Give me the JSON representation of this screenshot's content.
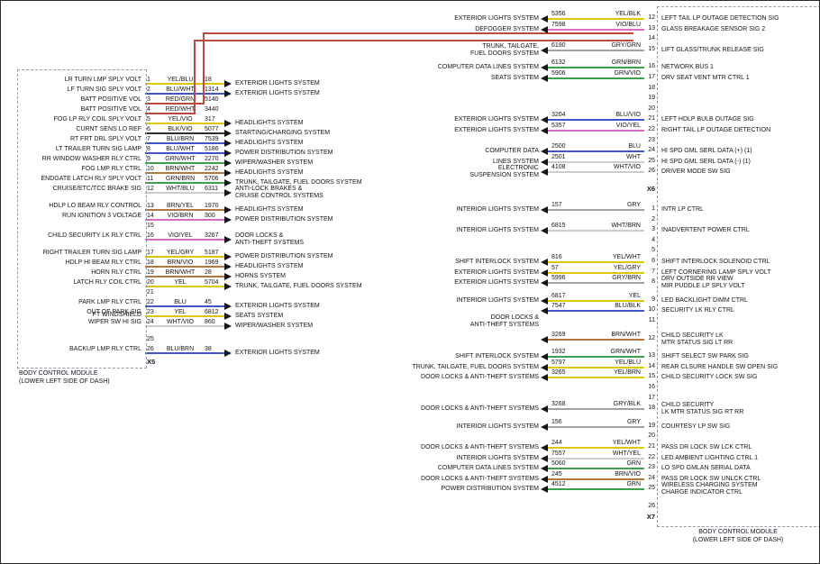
{
  "wire_colors": {
    "YEL": "#ddc702",
    "BLU": "#4056c8",
    "RED": "#b94a3e",
    "GRN": "#3f9f4c",
    "BRN": "#b1793f",
    "BLK": "#2d2d2d",
    "VIO": "#d66cc5",
    "WHT": "#cccccc",
    "GRY": "#a3a3a3"
  },
  "left_module": {
    "name_line1": "BODY CONTROL MODULE",
    "name_line2": "(LOWER LEFT SIDE OF DASH)",
    "connector": "X5",
    "rows": [
      {
        "pin": "1",
        "label": "LR TURN LMP SPLY VOLT",
        "wire": "YEL/BLU",
        "circuit": "18",
        "system": "EXTERIOR LIGHTS SYSTEM"
      },
      {
        "pin": "2",
        "label": "LF TURN SIG SPLY VOLT",
        "wire": "BLU/WHT",
        "circuit": "1314",
        "system": "EXTERIOR LIGHTS SYSTEM"
      },
      {
        "pin": "3",
        "label": "BATT POSITIVE VOL",
        "wire": "RED/GRN",
        "circuit": "5140",
        "route": "up"
      },
      {
        "pin": "4",
        "label": "BATT POSITIVE VOL",
        "wire": "RED/WHT",
        "circuit": "3440",
        "route": "up"
      },
      {
        "pin": "5",
        "label": "FOG LP RLY COIL SPLY VOLT",
        "wire": "YEL/VIO",
        "circuit": "317",
        "system": "HEADLIGHTS SYSTEM"
      },
      {
        "pin": "6",
        "label": "CURNT SENS LO REF",
        "wire": "BLK/VIO",
        "circuit": "5077",
        "system": "STARTING/CHARGING SYSTEM"
      },
      {
        "pin": "7",
        "label": "RT FRT DRL SPLY VOLT",
        "wire": "BLU/BRN",
        "circuit": "7539",
        "system": "HEADLIGHTS SYSTEM"
      },
      {
        "pin": "8",
        "label": "LT TRAILER TURN SIG LAMP",
        "wire": "BLU/WHT",
        "circuit": "5186",
        "system": "POWER DISTRIBUTION SYSTEM"
      },
      {
        "pin": "9",
        "label": "RR WINDOW WASHER RLY CTRL",
        "wire": "GRN/WHT",
        "circuit": "2270",
        "system": "WIPER/WASHER SYSTEM"
      },
      {
        "pin": "10",
        "label": "FOG LMP RLY CTRL",
        "wire": "BRN/WHT",
        "circuit": "2242",
        "system": "HEADLIGHTS SYSTEM"
      },
      {
        "pin": "11",
        "label": "ENDGATE LATCH RLY SPLY VOLT",
        "wire": "GRN/BRN",
        "circuit": "5706",
        "system": "TRUNK, TAILGATE, FUEL DOORS SYSTEM"
      },
      {
        "pin": "12",
        "label": "CRUISE/ETC/TCC BRAKE SIG",
        "wire": "WHT/BLU",
        "circuit": "6311",
        "system": "ANTI-LOCK BRAKES &\nCRUISE CONTROL SYSTEMS"
      },
      {
        "pin": "13",
        "label": "HDLP LO BEAM RLY CONTROL",
        "wire": "BRN/YEL",
        "circuit": "1970",
        "system": "HEADLIGHTS SYSTEM"
      },
      {
        "pin": "14",
        "label": "RUN IGNITION 3 VOLTAGE",
        "wire": "VIO/BRN",
        "circuit": "300",
        "system": "POWER DISTRIBUTION SYSTEM"
      },
      {
        "pin": "15"
      },
      {
        "pin": "16",
        "label": "CHILD SECURITY LK RLY CTRL",
        "wire": "VIO/YEL",
        "circuit": "3267",
        "system": "DOOR LOCKS &\nANTI-THEFT SYSTEMS"
      },
      {
        "pin": "17",
        "label": "RIGHT TRAILER TURN SIG LAMP",
        "wire": "YEL/GRY",
        "circuit": "5187",
        "system": "POWER DISTRIBUTION SYSTEM"
      },
      {
        "pin": "18",
        "label": "HDLP HI BEAM RLY CTRL",
        "wire": "BRN/VIO",
        "circuit": "1969",
        "system": "HEADLIGHTS SYSTEM"
      },
      {
        "pin": "19",
        "label": "HORN RLY CTRL",
        "wire": "BRN/WHT",
        "circuit": "28",
        "system": "HORNS SYSTEM"
      },
      {
        "pin": "20",
        "label": "LATCH RLY COIL CTRL",
        "wire": "YEL",
        "circuit": "5704",
        "system": "TRUNK, TAILGATE, FUEL DOORS SYSTEM"
      },
      {
        "pin": "21"
      },
      {
        "pin": "22",
        "label": "PARK LMP RLY CTRL",
        "wire": "BLU",
        "circuit": "45",
        "system": "EXTERIOR LIGHTS SYSTEM"
      },
      {
        "pin": "23",
        "label": "OUT OF PARK SIG",
        "wire": "YEL",
        "circuit": "6812",
        "system": "SEATS SYSTEM"
      },
      {
        "pin": "24",
        "label": "FT WINDSHIELD\nWIPER SW HI SIG",
        "wire": "WHT/VIO",
        "circuit": "860",
        "system": "WIPER/WASHER SYSTEM"
      },
      {
        "pin": "25"
      },
      {
        "pin": "26",
        "label": "BACKUP LMP RLY CTRL",
        "wire": "BLU/BRN",
        "circuit": "38",
        "system": "EXTERIOR LIGHTS SYSTEM"
      }
    ]
  },
  "right_module": {
    "name_line1": "BODY CONTROL MODULE",
    "name_line2": "(LOWER LEFT SIDE OF DASH)",
    "sections": [
      {
        "connector": "X6",
        "rows": [
          {
            "pin": "12",
            "circuit": "5356",
            "wire": "YEL/BLK",
            "system": "EXTERIOR LIGHTS SYSTEM",
            "label": "LEFT TAIL LP OUTAGE DETECTION SIG"
          },
          {
            "pin": "13",
            "circuit": "7598",
            "wire": "VIO/BLU",
            "system": "DEFOGGER SYSTEM",
            "label": "GLASS BREAKAGE SENSOR SIG 2"
          },
          {
            "pin": "14"
          },
          {
            "pin": "15",
            "circuit": "6190",
            "wire": "GRY/GRN",
            "system": "TRUNK, TAILGATE,\nFUEL DOORS SYSTEM",
            "label": "LIFT GLASS/TRUNK RELEASE SIG"
          },
          {
            "pin": "16",
            "circuit": "6132",
            "wire": "GRN/BRN",
            "system": "COMPUTER DATA LINES SYSTEM",
            "label": "NETWORK BUS 1"
          },
          {
            "pin": "17",
            "circuit": "5906",
            "wire": "GRN/VIO",
            "system": "SEATS SYSTEM",
            "label": "DRV SEAT VENT MTR CTRL 1"
          },
          {
            "pin": "18"
          },
          {
            "pin": "19"
          },
          {
            "pin": "20"
          },
          {
            "pin": "21",
            "circuit": "3204",
            "wire": "BLU/VIO",
            "system": "EXTERIOR LIGHTS SYSTEM",
            "label": "LEFT HDLP BULB OUTAGE SIG"
          },
          {
            "pin": "22",
            "circuit": "5357",
            "wire": "VIO/YEL",
            "system": "EXTERIOR LIGHTS SYSTEM",
            "label": "RIGHT TAIL LP OUTAGE DETECTION"
          },
          {
            "pin": "23"
          },
          {
            "pin": "24",
            "circuit": "2500",
            "wire": "BLU",
            "system": "COMPUTER DATA",
            "label": "HI SPD GML SERL DATA (+) (1)"
          },
          {
            "pin": "25",
            "circuit": "2501",
            "wire": "WHT",
            "system": "LINES SYSTEM",
            "label": "HI SPD GML SERL DATA (-) (1)"
          },
          {
            "pin": "26",
            "circuit": "4108",
            "wire": "WHT/VIO",
            "system": "ELECTRONIC\nSUSPENSION SYSTEM",
            "label": "DRIVER MODE SW SIG"
          }
        ]
      },
      {
        "connector": "X7",
        "rows": [
          {
            "pin": "1",
            "circuit": "157",
            "wire": "GRY",
            "system": "INTERIOR LIGHTS SYSTEM",
            "label": "INTR LP CTRL"
          },
          {
            "pin": "2"
          },
          {
            "pin": "3",
            "circuit": "6815",
            "wire": "WHT/BRN",
            "system": "INTERIOR LIGHTS SYSTEM",
            "label": "INADVERTENT POWER CTRL"
          },
          {
            "pin": "4"
          },
          {
            "pin": "5"
          },
          {
            "pin": "6",
            "circuit": "816",
            "wire": "YEL/WHT",
            "system": "SHIFT INTERLOCK SYSTEM",
            "label": "SHIFT INTERLOCK SOLENOID CTRL"
          },
          {
            "pin": "7",
            "circuit": "57",
            "wire": "YEL/GRY",
            "system": "EXTERIOR LIGHTS SYSTEM",
            "label": "LEFT CORNERING LAMP SPLY VOLT"
          },
          {
            "pin": "8",
            "circuit": "5996",
            "wire": "GRY/BRN",
            "system": "EXTERIOR LIGHTS SYSTEM",
            "label": "DRV OUTSIDE RR VIEW\nMIR PUDDLE LP SPLY VOLT"
          },
          {
            "pin": "9",
            "circuit": "6817",
            "wire": "YEL",
            "system": "INTERIOR LIGHTS SYSTEM",
            "label": "LED BACKLIGHT DIMM CTRL"
          },
          {
            "pin": "10",
            "circuit": "7547",
            "wire": "BLU/BLK",
            "label": "SECURITY LK RLY CTRL"
          },
          {
            "pin": "11",
            "system": "DOOR LOCKS &\nANTI-THEFT SYSTEMS"
          },
          {
            "pin": "12",
            "circuit": "3269",
            "wire": "BRN/WHT",
            "label": "CHILD SECURITY LK\nMTR STATUS SIG LT RR"
          },
          {
            "pin": "13",
            "circuit": "1932",
            "wire": "GRN/WHT",
            "system": "SHIFT INTERLOCK SYSTEM",
            "label": "SHIFT SELECT SW PARK SIG"
          },
          {
            "pin": "14",
            "circuit": "5797",
            "wire": "YEL/BLU",
            "system": "TRUNK, TAILGATE, FUEL DOORS SYSTEM",
            "label": "REAR CLSURE HANDLE SW OPEN SIG"
          },
          {
            "pin": "15",
            "circuit": "3265",
            "wire": "YEL/BRN",
            "system": "DOOR LOCKS & ANTI-THEFT SYSTEMS",
            "label": "CHILD SECURITY LOCK SW SIG"
          },
          {
            "pin": "16"
          },
          {
            "pin": "17"
          },
          {
            "pin": "18",
            "circuit": "3268",
            "wire": "GRY/BLK",
            "system": "DOOR LOCKS & ANTI-THEFT SYSTEMS",
            "label": "CHILD SECURITY\nLK MTR STATUS SIG RT RR"
          },
          {
            "pin": "19",
            "circuit": "156",
            "wire": "GRY",
            "system": "INTERIOR LIGHTS SYSTEM",
            "label": "COURTESY LP SW SIG"
          },
          {
            "pin": "20"
          },
          {
            "pin": "21",
            "circuit": "244",
            "wire": "YEL/WHT",
            "system": "DOOR LOCKS & ANTI-THEFT SYSTEMS",
            "label": "PASS DR LOCK SW LCK CTRL"
          },
          {
            "pin": "22",
            "circuit": "7557",
            "wire": "WHT/YEL",
            "system": "INTERIOR LIGHTS SYSTEM",
            "label": "LED AMBIENT LIGHTING CTRL 1"
          },
          {
            "pin": "23",
            "circuit": "5060",
            "wire": "GRN",
            "system": "COMPUTER DATA LINES SYSTEM",
            "label": "LO SPD GMLAN SERIAL DATA"
          },
          {
            "pin": "24",
            "circuit": "245",
            "wire": "BRN/VIO",
            "system": "DOOR LOCKS & ANTI-THEFT SYSTEMS",
            "label": "PASS DR LOCK SW UNLCK CTRL"
          },
          {
            "pin": "25",
            "circuit": "4512",
            "wire": "GRN",
            "system": "POWER DISTRIBUTION SYSTEM",
            "label": "WIRELESS CHARGING SYSTEM\nCHARGE INDICATOR CTRL"
          },
          {
            "pin": "26"
          }
        ]
      }
    ]
  }
}
